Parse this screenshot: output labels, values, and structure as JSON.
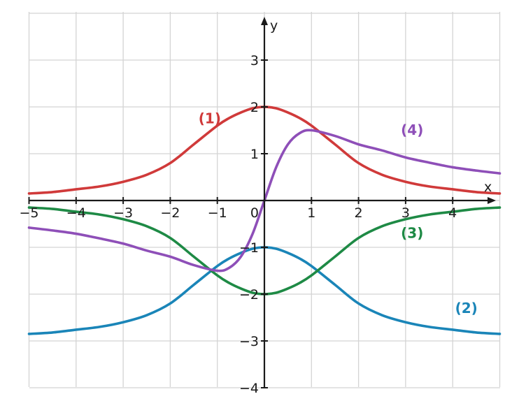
{
  "chart_data": {
    "type": "line",
    "xlabel": "x",
    "ylabel": "y",
    "xlim": [
      -5,
      5
    ],
    "ylim": [
      -4,
      4
    ],
    "grid": true,
    "x_ticks": [
      {
        "value": -5,
        "label": "−5"
      },
      {
        "value": -4,
        "label": "−4"
      },
      {
        "value": -3,
        "label": "−3"
      },
      {
        "value": -2,
        "label": "−2"
      },
      {
        "value": -1,
        "label": "−1"
      },
      {
        "value": 1,
        "label": "1"
      },
      {
        "value": 2,
        "label": "2"
      },
      {
        "value": 3,
        "label": "3"
      },
      {
        "value": 4,
        "label": "4"
      }
    ],
    "y_ticks": [
      {
        "value": 3,
        "label": "3"
      },
      {
        "value": 2,
        "label": "2"
      },
      {
        "value": 1,
        "label": "1"
      },
      {
        "value": -1,
        "label": "−1"
      },
      {
        "value": -2,
        "label": "−2"
      },
      {
        "value": -3,
        "label": "−3"
      },
      {
        "value": -4,
        "label": "−4"
      }
    ],
    "origin_label": "0",
    "series": [
      {
        "name": "(1)",
        "color": "#d03a3a",
        "label_at": [
          -1.4,
          1.65
        ],
        "x": [
          -5,
          -4.5,
          -4,
          -3.5,
          -3,
          -2.5,
          -2,
          -1.5,
          -1,
          -0.75,
          -0.5,
          -0.25,
          0,
          0.25,
          0.5,
          0.75,
          1,
          1.5,
          2,
          2.5,
          3,
          3.5,
          4,
          4.5,
          5
        ],
        "y": [
          0.15,
          0.18,
          0.24,
          0.3,
          0.4,
          0.55,
          0.8,
          1.2,
          1.6,
          1.76,
          1.88,
          1.97,
          2.0,
          1.97,
          1.88,
          1.76,
          1.6,
          1.2,
          0.8,
          0.55,
          0.4,
          0.3,
          0.24,
          0.18,
          0.15
        ]
      },
      {
        "name": "(2)",
        "color": "#1a85b8",
        "label_at": [
          4.05,
          -2.4
        ],
        "x": [
          -5,
          -4.5,
          -4,
          -3.5,
          -3,
          -2.5,
          -2,
          -1.5,
          -1,
          -0.75,
          -0.5,
          -0.25,
          0,
          0.25,
          0.5,
          0.75,
          1,
          1.5,
          2,
          2.5,
          3,
          3.5,
          4,
          4.5,
          5
        ],
        "y": [
          -2.85,
          -2.82,
          -2.76,
          -2.7,
          -2.6,
          -2.45,
          -2.2,
          -1.8,
          -1.4,
          -1.24,
          -1.12,
          -1.03,
          -1.0,
          -1.03,
          -1.12,
          -1.24,
          -1.4,
          -1.8,
          -2.2,
          -2.45,
          -2.6,
          -2.7,
          -2.76,
          -2.82,
          -2.85
        ]
      },
      {
        "name": "(3)",
        "color": "#1e8a45",
        "label_at": [
          2.9,
          -0.8
        ],
        "x": [
          -5,
          -4.5,
          -4,
          -3.5,
          -3,
          -2.5,
          -2,
          -1.5,
          -1,
          -0.75,
          -0.5,
          -0.25,
          0,
          0.25,
          0.5,
          0.75,
          1,
          1.5,
          2,
          2.5,
          3,
          3.5,
          4,
          4.5,
          5
        ],
        "y": [
          -0.15,
          -0.18,
          -0.24,
          -0.3,
          -0.4,
          -0.55,
          -0.8,
          -1.2,
          -1.6,
          -1.76,
          -1.88,
          -1.97,
          -2.0,
          -1.97,
          -1.88,
          -1.76,
          -1.6,
          -1.2,
          -0.8,
          -0.55,
          -0.4,
          -0.3,
          -0.24,
          -0.18,
          -0.15
        ]
      },
      {
        "name": "(4)",
        "color": "#8e4fb8",
        "label_at": [
          2.9,
          1.4
        ],
        "x": [
          -5,
          -4.5,
          -4,
          -3.5,
          -3,
          -2.5,
          -2,
          -1.5,
          -1,
          -0.75,
          -0.5,
          -0.25,
          0,
          0.25,
          0.5,
          0.75,
          1,
          1.5,
          2,
          2.5,
          3,
          3.5,
          4,
          4.5,
          5
        ],
        "y": [
          -0.58,
          -0.64,
          -0.71,
          -0.81,
          -0.92,
          -1.07,
          -1.2,
          -1.38,
          -1.5,
          -1.44,
          -1.2,
          -0.71,
          0.0,
          0.71,
          1.2,
          1.44,
          1.5,
          1.38,
          1.2,
          1.07,
          0.92,
          0.81,
          0.71,
          0.64,
          0.58
        ]
      }
    ]
  }
}
